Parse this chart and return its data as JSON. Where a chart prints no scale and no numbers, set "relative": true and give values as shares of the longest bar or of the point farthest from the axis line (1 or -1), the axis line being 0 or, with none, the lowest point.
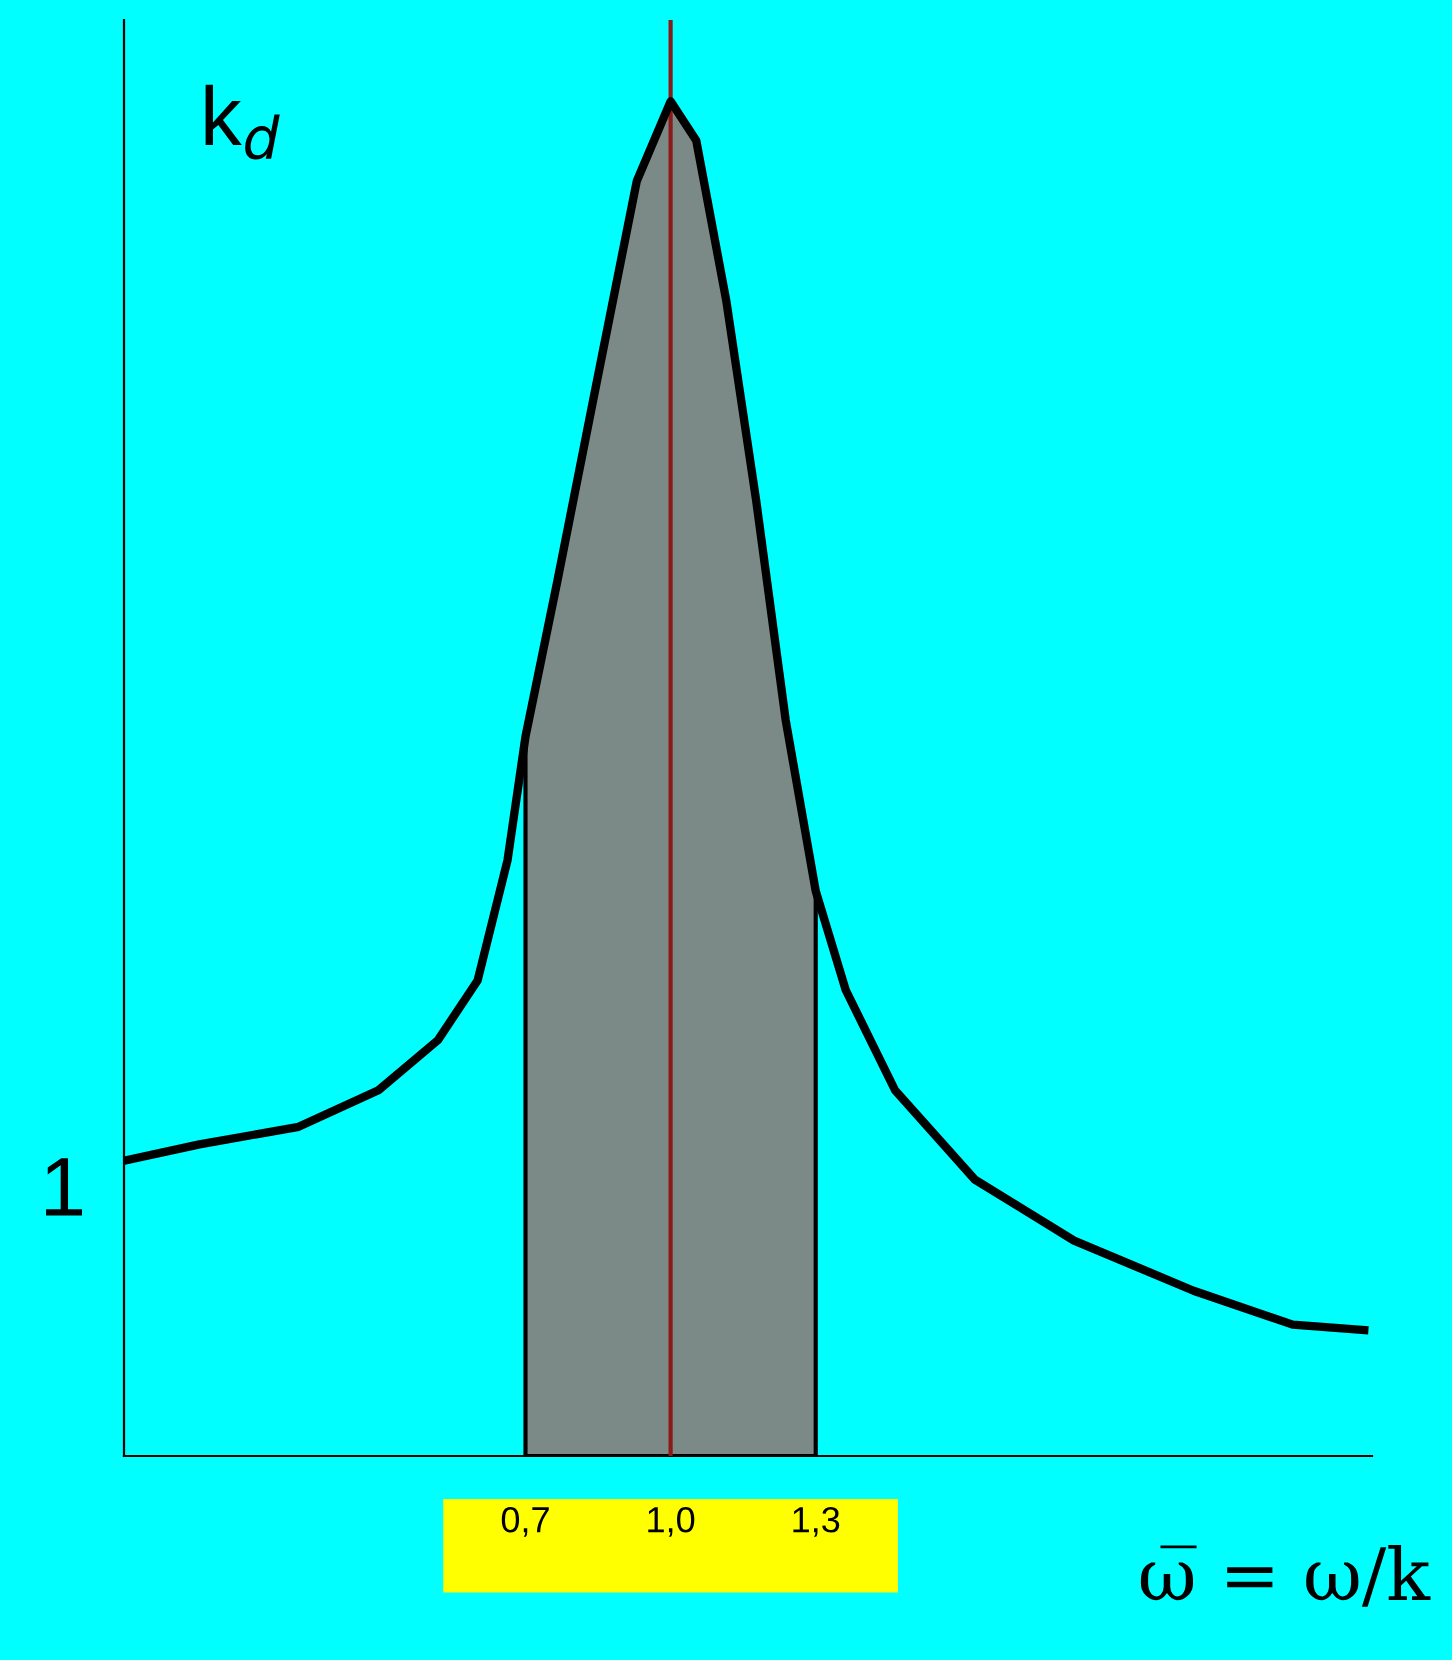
{
  "chart_data": {
    "type": "line",
    "relative": true,
    "ylabel": "k$_{d}$",
    "xlabel": "ω̅ = ω/k",
    "xlim": [
      -0.13,
      2.45
    ],
    "xticks": [
      {
        "value": 0.7,
        "label": "0,7"
      },
      {
        "value": 1.0,
        "label": "1,0"
      },
      {
        "value": 1.3,
        "label": "1,3"
      }
    ],
    "tick_labels": "x",
    "grid": false,
    "legend": false,
    "marker": "none",
    "annotations": [
      {
        "text": "1",
        "x": -0.13,
        "y": 0.218
      }
    ],
    "ref_lines": [
      {
        "axis": "x",
        "value": 1.0,
        "color": "#8b1a1a"
      }
    ],
    "series": [
      {
        "type": "area",
        "color": "#7b8a87",
        "x": [
          0.7,
          0.766,
          0.848,
          0.93,
          1.0,
          1.053,
          1.115,
          1.177,
          1.238,
          1.3
        ],
        "values": [
          0.531,
          0.646,
          0.794,
          0.941,
          1.0,
          0.971,
          0.853,
          0.705,
          0.543,
          0.417
        ]
      },
      {
        "color": "#000000",
        "x": [
          -0.13,
          0.026,
          0.231,
          0.396,
          0.519,
          0.601,
          0.663,
          0.7,
          0.766,
          0.848,
          0.93,
          1.0,
          1.053,
          1.115,
          1.177,
          1.238,
          1.3,
          1.362,
          1.464,
          1.629,
          1.834,
          2.081,
          2.286,
          2.434
        ],
        "values": [
          0.218,
          0.23,
          0.243,
          0.27,
          0.307,
          0.351,
          0.44,
          0.531,
          0.646,
          0.794,
          0.941,
          1.0,
          0.971,
          0.853,
          0.705,
          0.543,
          0.417,
          0.344,
          0.27,
          0.204,
          0.159,
          0.122,
          0.097,
          0.093
        ]
      }
    ]
  }
}
